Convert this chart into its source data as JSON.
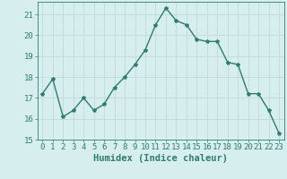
{
  "x": [
    0,
    1,
    2,
    3,
    4,
    5,
    6,
    7,
    8,
    9,
    10,
    11,
    12,
    13,
    14,
    15,
    16,
    17,
    18,
    19,
    20,
    21,
    22,
    23
  ],
  "y": [
    17.2,
    17.9,
    16.1,
    16.4,
    17.0,
    16.4,
    16.7,
    17.5,
    18.0,
    18.6,
    19.3,
    20.5,
    21.3,
    20.7,
    20.5,
    19.8,
    19.7,
    19.7,
    18.7,
    18.6,
    17.2,
    17.2,
    16.4,
    15.3
  ],
  "line_color": "#2e7d6e",
  "marker": "*",
  "marker_size": 3,
  "bg_color": "#d6eeee",
  "grid_color": "#c0dada",
  "xlabel": "Humidex (Indice chaleur)",
  "ylim": [
    15,
    21.6
  ],
  "xlim": [
    -0.5,
    23.5
  ],
  "yticks": [
    15,
    16,
    17,
    18,
    19,
    20,
    21
  ],
  "xticks": [
    0,
    1,
    2,
    3,
    4,
    5,
    6,
    7,
    8,
    9,
    10,
    11,
    12,
    13,
    14,
    15,
    16,
    17,
    18,
    19,
    20,
    21,
    22,
    23
  ],
  "tick_label_fontsize": 6.5,
  "xlabel_fontsize": 7.5,
  "line_width": 1.0
}
